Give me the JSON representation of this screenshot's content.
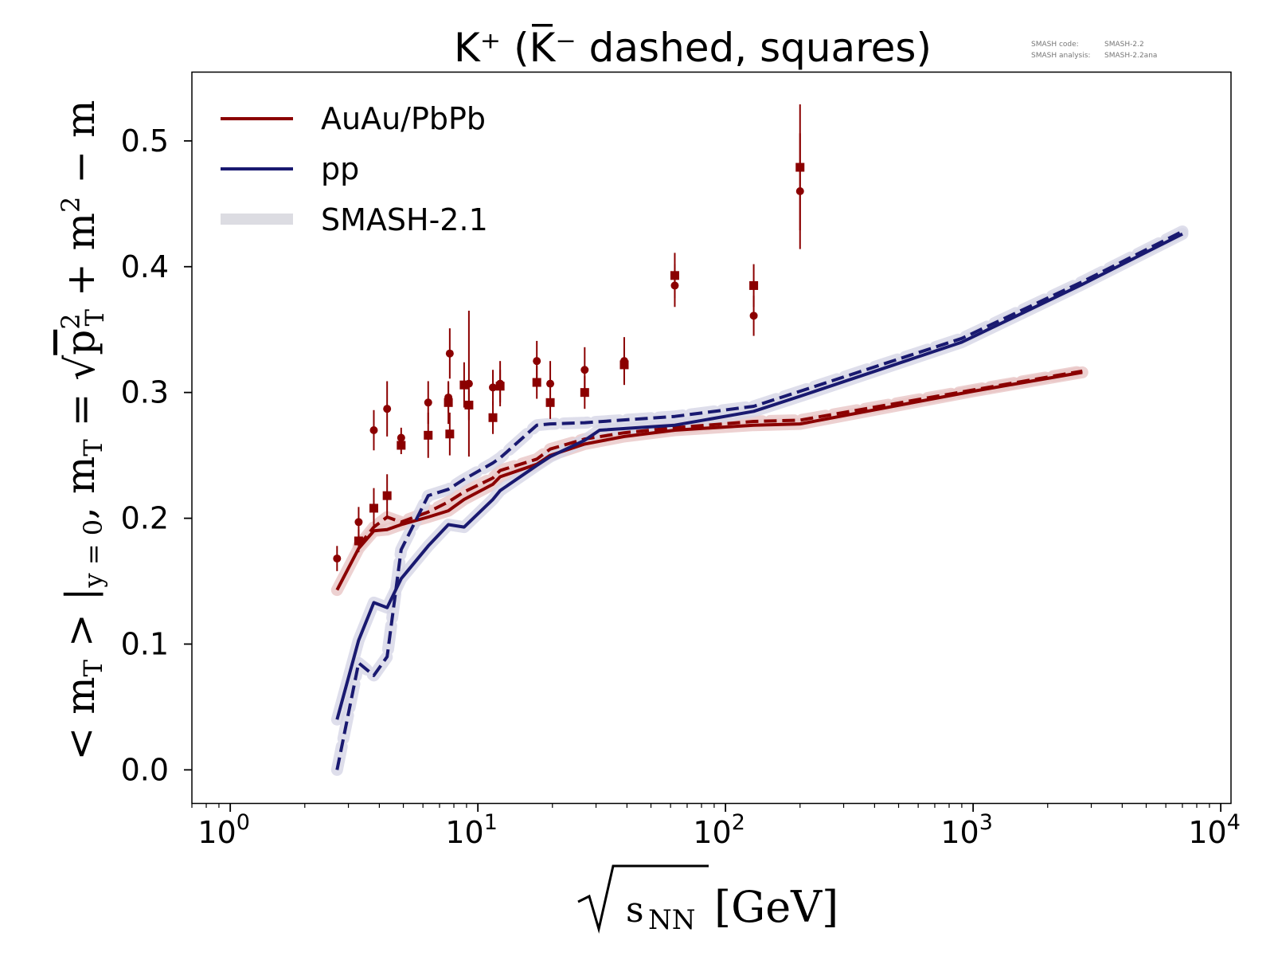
{
  "chart_data": {
    "type": "line",
    "title": "K⁺ (K̅⁻ dashed, squares)",
    "watermark": {
      "code_label": "SMASH code:",
      "code_value": "SMASH-2.2",
      "analysis_label": "SMASH analysis:",
      "analysis_value": "SMASH-2.2ana"
    },
    "xlabel": "√sNN [GeV]",
    "ylabel": "<mT>|y=0, mT = √(pT² + m²) − m",
    "x_scale": "log",
    "xlim": [
      0.7,
      11000
    ],
    "ylim": [
      -0.027,
      0.555
    ],
    "x_ticks": [
      {
        "value": 1,
        "base": "10",
        "exp": "0"
      },
      {
        "value": 10,
        "base": "10",
        "exp": "1"
      },
      {
        "value": 100,
        "base": "10",
        "exp": "2"
      },
      {
        "value": 1000,
        "base": "10",
        "exp": "3"
      },
      {
        "value": 10000,
        "base": "10",
        "exp": "4"
      }
    ],
    "y_ticks": [
      {
        "value": 0.0,
        "label": "0.0"
      },
      {
        "value": 0.1,
        "label": "0.1"
      },
      {
        "value": 0.2,
        "label": "0.2"
      },
      {
        "value": 0.3,
        "label": "0.3"
      },
      {
        "value": 0.4,
        "label": "0.4"
      },
      {
        "value": 0.5,
        "label": "0.5"
      }
    ],
    "grid": false,
    "legend_position": "top-left",
    "legend": [
      {
        "label": "AuAu/PbPb",
        "color": "#8b0000",
        "style": "solid"
      },
      {
        "label": "pp",
        "color": "#191970",
        "style": "solid"
      },
      {
        "label": "SMASH-2.1",
        "color": "#dcdce2",
        "style": "thick"
      }
    ],
    "series": [
      {
        "color": "#8b0000",
        "dashed": false,
        "band": "#e8c6c6",
        "points": [
          [
            2.7,
            0.143
          ],
          [
            3.3,
            0.176
          ],
          [
            3.8,
            0.19
          ],
          [
            4.3,
            0.191
          ],
          [
            4.9,
            0.195
          ],
          [
            6.3,
            0.201
          ],
          [
            7.6,
            0.206
          ],
          [
            8.8,
            0.215
          ],
          [
            11.5,
            0.227
          ],
          [
            12.3,
            0.233
          ],
          [
            17.3,
            0.243
          ],
          [
            19.6,
            0.25
          ],
          [
            27,
            0.259
          ],
          [
            39,
            0.265
          ],
          [
            62.4,
            0.27
          ],
          [
            130,
            0.274
          ],
          [
            200,
            0.275
          ],
          [
            1000,
            0.301
          ],
          [
            2760,
            0.316
          ]
        ]
      },
      {
        "color": "#8b0000",
        "dashed": true,
        "band": "#e8c6c6",
        "points": [
          [
            3.3,
            0.178
          ],
          [
            3.8,
            0.193
          ],
          [
            4.3,
            0.201
          ],
          [
            4.9,
            0.197
          ],
          [
            6.3,
            0.205
          ],
          [
            7.6,
            0.213
          ],
          [
            8.8,
            0.221
          ],
          [
            11.5,
            0.232
          ],
          [
            12.3,
            0.238
          ],
          [
            17.3,
            0.247
          ],
          [
            19.6,
            0.255
          ],
          [
            27,
            0.263
          ],
          [
            39,
            0.268
          ],
          [
            62.4,
            0.272
          ],
          [
            130,
            0.277
          ],
          [
            200,
            0.278
          ],
          [
            1000,
            0.302
          ],
          [
            2760,
            0.317
          ]
        ]
      },
      {
        "color": "#191970",
        "dashed": false,
        "band": "#d6d6e6",
        "points": [
          [
            2.7,
            0.04
          ],
          [
            3.3,
            0.103
          ],
          [
            3.8,
            0.133
          ],
          [
            4.3,
            0.129
          ],
          [
            4.9,
            0.152
          ],
          [
            6.3,
            0.178
          ],
          [
            7.6,
            0.195
          ],
          [
            8.8,
            0.193
          ],
          [
            11.5,
            0.215
          ],
          [
            12.3,
            0.222
          ],
          [
            17.3,
            0.242
          ],
          [
            19.6,
            0.249
          ],
          [
            27,
            0.262
          ],
          [
            31,
            0.27
          ],
          [
            62.4,
            0.274
          ],
          [
            130,
            0.285
          ],
          [
            200,
            0.297
          ],
          [
            900,
            0.34
          ],
          [
            2760,
            0.386
          ],
          [
            7000,
            0.426
          ]
        ]
      },
      {
        "color": "#191970",
        "dashed": true,
        "band": "#d6d6e6",
        "points": [
          [
            2.7,
            0.0
          ],
          [
            3.3,
            0.085
          ],
          [
            3.8,
            0.075
          ],
          [
            4.3,
            0.09
          ],
          [
            4.9,
            0.175
          ],
          [
            6.3,
            0.218
          ],
          [
            7.6,
            0.223
          ],
          [
            8.8,
            0.231
          ],
          [
            11.5,
            0.244
          ],
          [
            12.3,
            0.248
          ],
          [
            17.3,
            0.274
          ],
          [
            19.6,
            0.275
          ],
          [
            27,
            0.276
          ],
          [
            62.4,
            0.281
          ],
          [
            130,
            0.289
          ],
          [
            200,
            0.301
          ],
          [
            900,
            0.343
          ],
          [
            2760,
            0.388
          ],
          [
            7000,
            0.428
          ]
        ]
      }
    ],
    "data_circles": {
      "color": "#8b0000",
      "points": [
        {
          "x": 2.7,
          "y": 0.168,
          "err": 0.01
        },
        {
          "x": 3.3,
          "y": 0.197,
          "err": 0.012
        },
        {
          "x": 3.8,
          "y": 0.27,
          "err": 0.016
        },
        {
          "x": 4.3,
          "y": 0.287,
          "err": 0.022
        },
        {
          "x": 4.9,
          "y": 0.264,
          "err": 0.008
        },
        {
          "x": 6.3,
          "y": 0.292,
          "err": 0.017
        },
        {
          "x": 7.6,
          "y": 0.296,
          "err": 0.012
        },
        {
          "x": 7.7,
          "y": 0.331,
          "err": 0.02
        },
        {
          "x": 9.2,
          "y": 0.307,
          "err": 0.058
        },
        {
          "x": 11.5,
          "y": 0.304,
          "err": 0.014
        },
        {
          "x": 12.3,
          "y": 0.307,
          "err": 0.018
        },
        {
          "x": 17.3,
          "y": 0.325,
          "err": 0.016
        },
        {
          "x": 19.6,
          "y": 0.307,
          "err": 0.018
        },
        {
          "x": 27,
          "y": 0.318,
          "err": 0.018
        },
        {
          "x": 39,
          "y": 0.325,
          "err": 0.019
        },
        {
          "x": 62.4,
          "y": 0.385,
          "err": 0.017
        },
        {
          "x": 130,
          "y": 0.361,
          "err": 0.016
        },
        {
          "x": 200,
          "y": 0.46,
          "err": 0.046
        }
      ]
    },
    "data_squares": {
      "color": "#8b0000",
      "points": [
        {
          "x": 3.3,
          "y": 0.182,
          "err": 0.009
        },
        {
          "x": 3.8,
          "y": 0.208,
          "err": 0.016
        },
        {
          "x": 4.3,
          "y": 0.218,
          "err": 0.017
        },
        {
          "x": 4.9,
          "y": 0.258,
          "err": 0.007
        },
        {
          "x": 6.3,
          "y": 0.266,
          "err": 0.018
        },
        {
          "x": 7.6,
          "y": 0.292,
          "err": 0.017
        },
        {
          "x": 7.7,
          "y": 0.267,
          "err": 0.017
        },
        {
          "x": 8.8,
          "y": 0.306,
          "err": 0.018
        },
        {
          "x": 9.2,
          "y": 0.29,
          "err": 0.012
        },
        {
          "x": 11.5,
          "y": 0.28,
          "err": 0.013
        },
        {
          "x": 12.3,
          "y": 0.305,
          "err": 0.013
        },
        {
          "x": 17.3,
          "y": 0.308,
          "err": 0.013
        },
        {
          "x": 19.6,
          "y": 0.292,
          "err": 0.013
        },
        {
          "x": 27,
          "y": 0.3,
          "err": 0.013
        },
        {
          "x": 39,
          "y": 0.322,
          "err": 0.013
        },
        {
          "x": 62.4,
          "y": 0.393,
          "err": 0.018
        },
        {
          "x": 130,
          "y": 0.385,
          "err": 0.017
        },
        {
          "x": 200,
          "y": 0.479,
          "err": 0.05
        }
      ]
    }
  }
}
